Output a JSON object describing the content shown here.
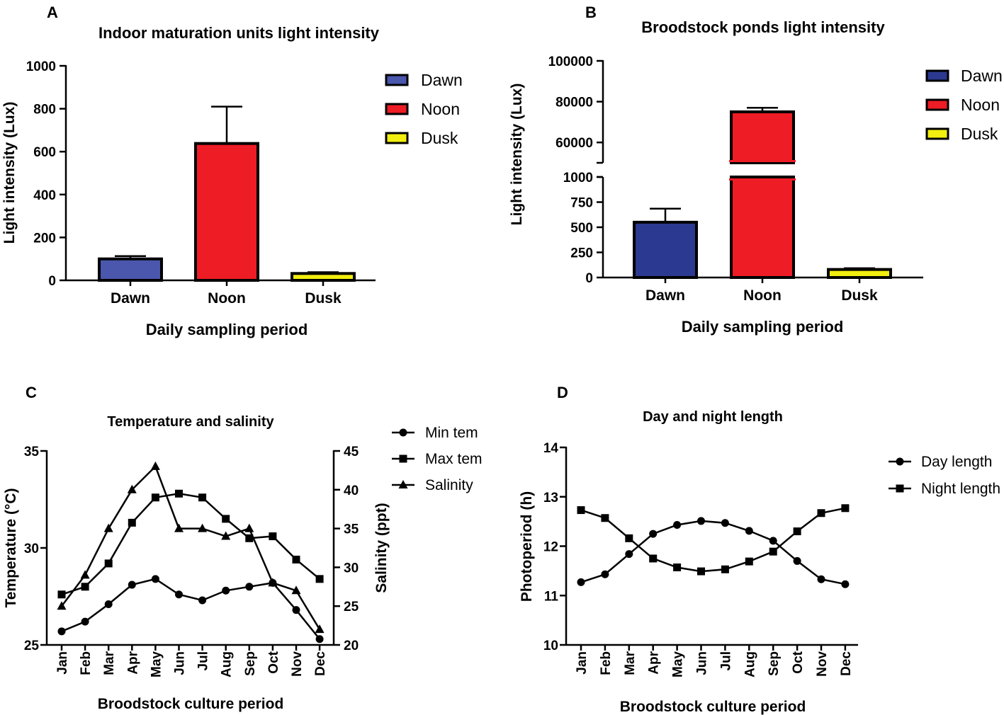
{
  "chart_data": [
    {
      "panel": "A",
      "type": "bar",
      "title": "Indoor maturation units light intensity",
      "xlabel": "Daily sampling period",
      "ylabel": "Light intensity (Lux)",
      "ylim": [
        0,
        1000
      ],
      "yticks": [
        "0",
        "200",
        "400",
        "600",
        "800",
        "1000"
      ],
      "categories": [
        "Dawn",
        "Noon",
        "Dusk"
      ],
      "values": [
        100,
        638,
        32
      ],
      "errors": [
        13,
        172,
        6
      ],
      "colors": [
        "#4a57ad",
        "#ee1c25",
        "#f2ee0f"
      ],
      "legend": [
        "Dawn",
        "Noon",
        "Dusk"
      ]
    },
    {
      "panel": "B",
      "type": "bar",
      "title": "Broodstock ponds light intensity",
      "xlabel": "Daily sampling period",
      "ylabel": "Light intensity (Lux)",
      "axis_break": true,
      "ylim_lower": [
        0,
        1000
      ],
      "ylim_upper": [
        50000,
        100000
      ],
      "yticks_lower": [
        "0",
        "250",
        "500",
        "750",
        "1000"
      ],
      "yticks_upper": [
        "60000",
        "80000",
        "100000"
      ],
      "categories": [
        "Dawn",
        "Noon",
        "Dusk"
      ],
      "values": [
        550,
        75000,
        80
      ],
      "errors": [
        135,
        2000,
        12
      ],
      "colors": [
        "#2b3990",
        "#ee1c25",
        "#f2ee0f"
      ],
      "legend": [
        "Dawn",
        "Noon",
        "Dusk"
      ]
    },
    {
      "panel": "C",
      "type": "line",
      "title": "Temperature and salinity",
      "xlabel": "Broodstock culture period",
      "ylabel": "Temperature (°C)",
      "ylabel_right": "Salinity (ppt)",
      "ylim": [
        25,
        35
      ],
      "ylim_right": [
        20,
        45
      ],
      "yticks": [
        "25",
        "30",
        "35"
      ],
      "yticks_right": [
        "20",
        "25",
        "30",
        "35",
        "40",
        "45"
      ],
      "categories": [
        "Jan",
        "Feb",
        "Mar",
        "Apr",
        "May",
        "Jun",
        "Jul",
        "Aug",
        "Sep",
        "Oct",
        "Nov",
        "Dec"
      ],
      "series": [
        {
          "name": "Min tem",
          "marker": "circle",
          "axis": "left",
          "values": [
            25.7,
            26.2,
            27.1,
            28.1,
            28.4,
            27.6,
            27.3,
            27.8,
            28.0,
            28.2,
            26.8,
            25.3
          ]
        },
        {
          "name": "Max tem",
          "marker": "square",
          "axis": "left",
          "values": [
            27.6,
            28.0,
            29.2,
            31.3,
            32.6,
            32.8,
            32.6,
            31.5,
            30.5,
            30.6,
            29.4,
            28.4
          ]
        },
        {
          "name": "Salinity",
          "marker": "triangle",
          "axis": "right",
          "values": [
            25,
            29,
            35,
            40,
            43,
            35,
            35,
            34,
            35,
            28,
            27,
            22
          ]
        }
      ]
    },
    {
      "panel": "D",
      "type": "line",
      "title": "Day and night length",
      "xlabel": "Broodstock culture period",
      "ylabel": "Photoperiod (h)",
      "ylim": [
        10,
        14
      ],
      "yticks": [
        "10",
        "11",
        "12",
        "13",
        "14"
      ],
      "categories": [
        "Jan",
        "Feb",
        "Mar",
        "Apr",
        "May",
        "Jun",
        "Jul",
        "Aug",
        "Sep",
        "Oct",
        "Nov",
        "Dec"
      ],
      "series": [
        {
          "name": "Day length",
          "marker": "circle",
          "values": [
            11.27,
            11.43,
            11.84,
            12.25,
            12.43,
            12.51,
            12.47,
            12.31,
            12.11,
            11.7,
            11.33,
            11.23
          ]
        },
        {
          "name": "Night length",
          "marker": "square",
          "values": [
            12.73,
            12.57,
            12.16,
            11.75,
            11.57,
            11.49,
            11.53,
            11.69,
            11.89,
            12.3,
            12.67,
            12.77
          ]
        }
      ]
    }
  ]
}
